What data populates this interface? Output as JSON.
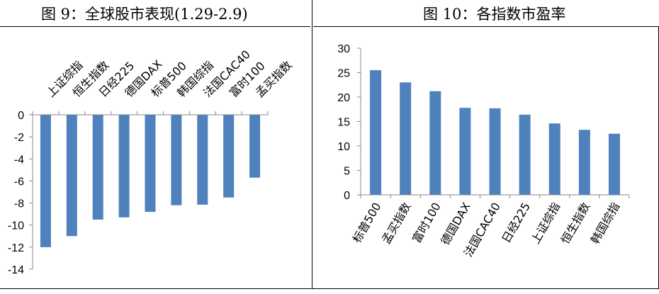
{
  "left_panel": {
    "title": "图 9：全球股市表现(1.29-2.9)"
  },
  "right_panel": {
    "title": "图 10：各指数市盈率"
  },
  "colors": {
    "bar": "#4f81bd",
    "axis": "#888888",
    "frame": "#000000"
  },
  "chart_data": [
    {
      "type": "bar",
      "title": "",
      "categories": [
        "上证综指",
        "恒生指数",
        "日经225",
        "德国DAX",
        "标普500",
        "韩国综指",
        "法国CAC40",
        "富时100",
        "孟买指数"
      ],
      "values": [
        -12.0,
        -11.0,
        -9.5,
        -9.3,
        -8.8,
        -8.2,
        -8.15,
        -7.5,
        -5.7
      ],
      "ylim": [
        -14,
        0
      ],
      "yticks": [
        0,
        -2,
        -4,
        -6,
        -8,
        -10,
        -12,
        -14
      ],
      "xlabel": "",
      "ylabel": "",
      "grid": false
    },
    {
      "type": "bar",
      "title": "",
      "categories": [
        "标普500",
        "孟买指数",
        "富时100",
        "德国DAX",
        "法国CAC40",
        "日经225",
        "上证综指",
        "恒生指数",
        "韩国综指"
      ],
      "values": [
        25.5,
        23.0,
        21.2,
        17.8,
        17.7,
        16.4,
        14.6,
        13.3,
        12.5
      ],
      "ylim": [
        0,
        30
      ],
      "yticks": [
        0,
        5,
        10,
        15,
        20,
        25,
        30
      ],
      "xlabel": "",
      "ylabel": "",
      "grid": false
    }
  ]
}
